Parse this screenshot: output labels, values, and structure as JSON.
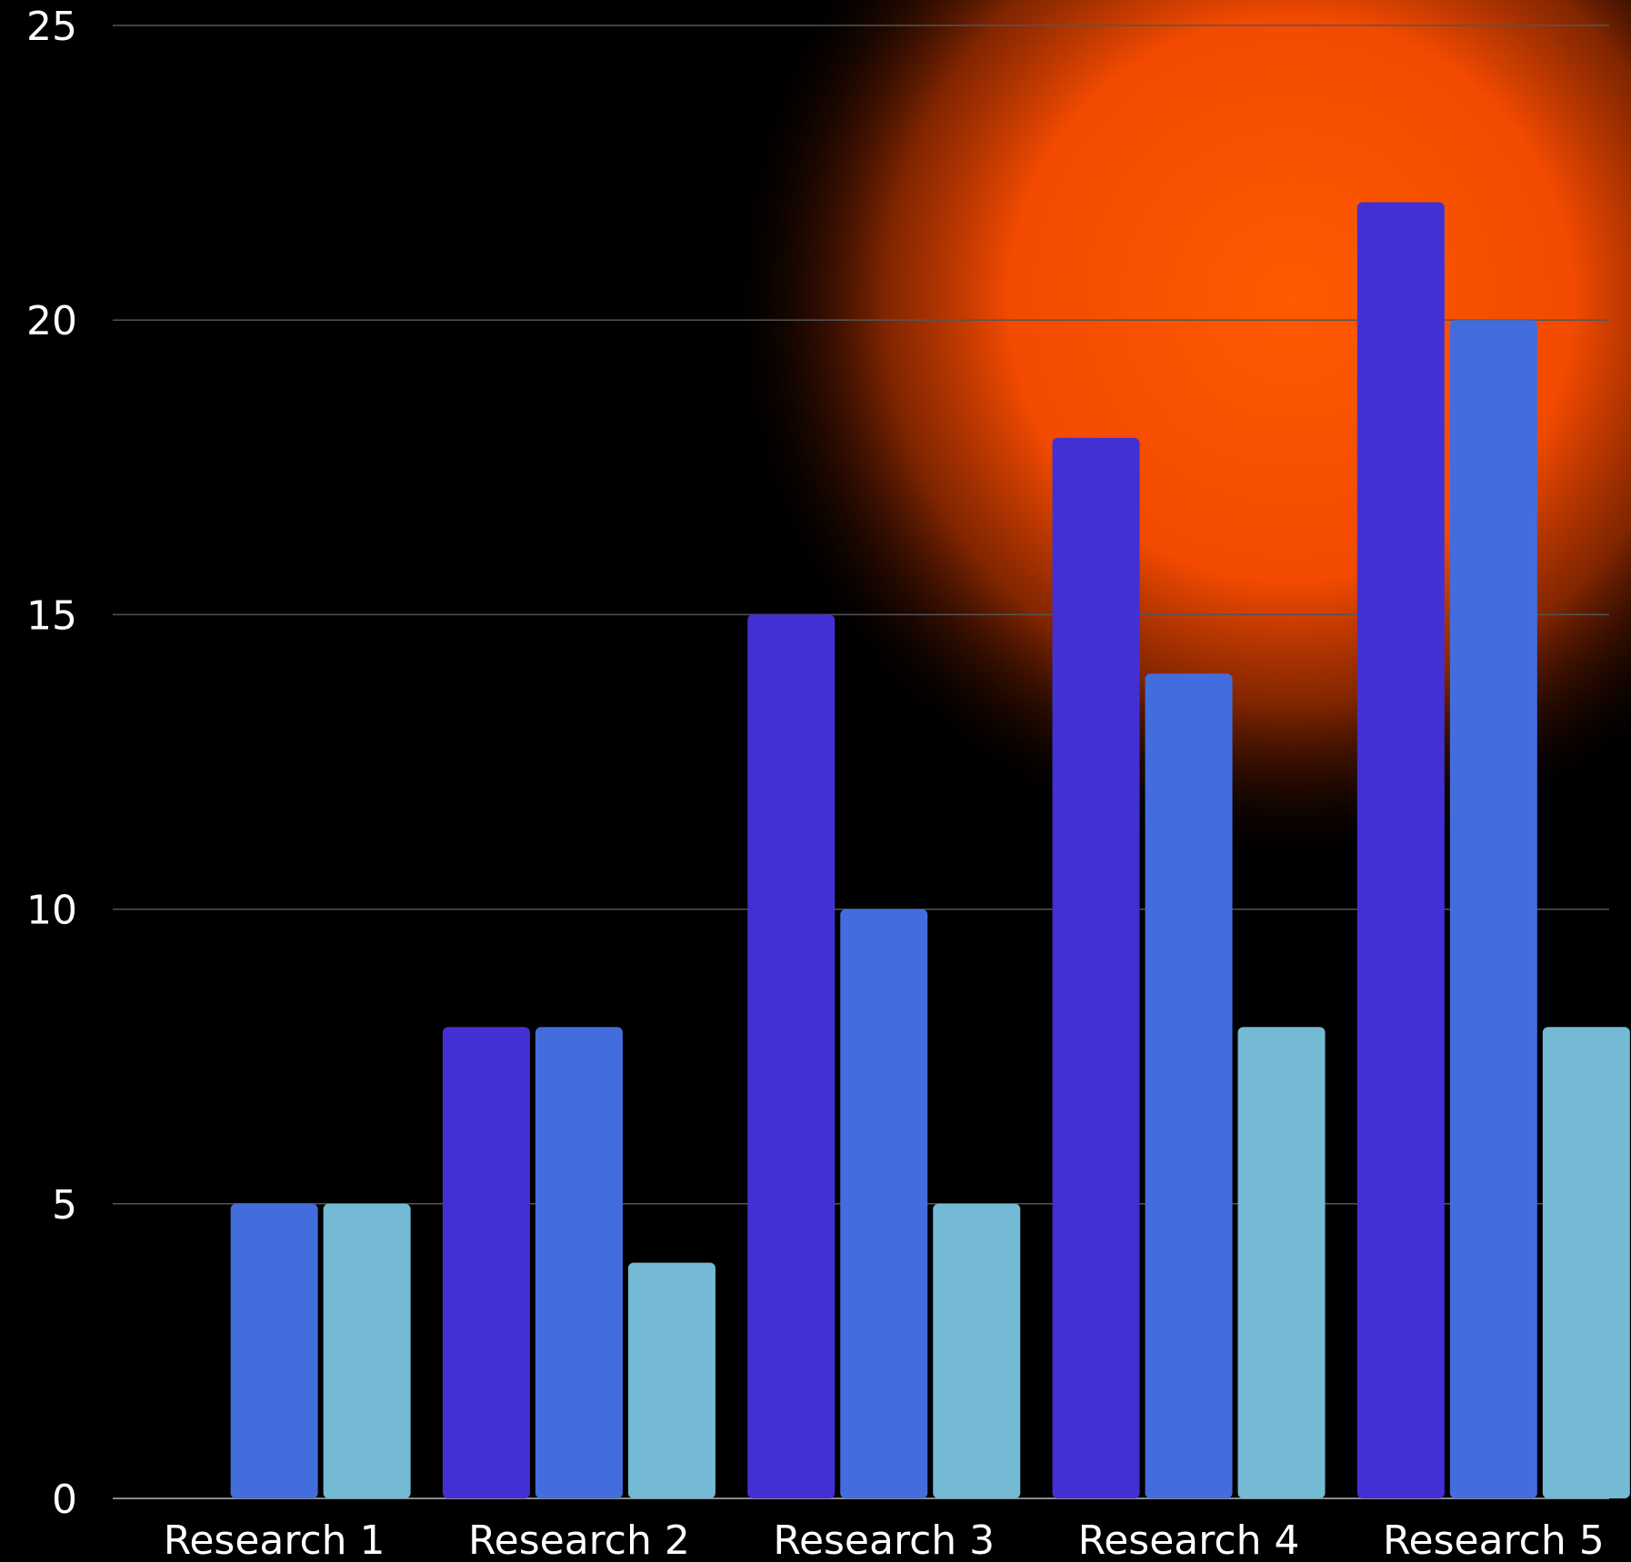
{
  "chart_data": {
    "type": "bar",
    "title": "",
    "xlabel": "",
    "ylabel": "",
    "categories": [
      "Research 1",
      "Research 2",
      "Research 3",
      "Research 4",
      "Research 5"
    ],
    "series": [
      {
        "values": [
          0,
          8,
          15,
          18,
          22
        ],
        "color": "#4330d4"
      },
      {
        "values": [
          5,
          8,
          10,
          14,
          20
        ],
        "color": "#436ddc"
      },
      {
        "values": [
          5,
          4,
          5,
          8,
          8
        ],
        "color": "#74bad4"
      }
    ],
    "ylim": [
      0,
      25
    ],
    "yticks": [
      0,
      5,
      10,
      15,
      20,
      25
    ],
    "grid": true,
    "legend": "none",
    "colors": {
      "background": "#000000",
      "gridline": "#555555",
      "axis": "#888888",
      "text": "#ffffff",
      "glow_center": "#ff5a00"
    }
  }
}
